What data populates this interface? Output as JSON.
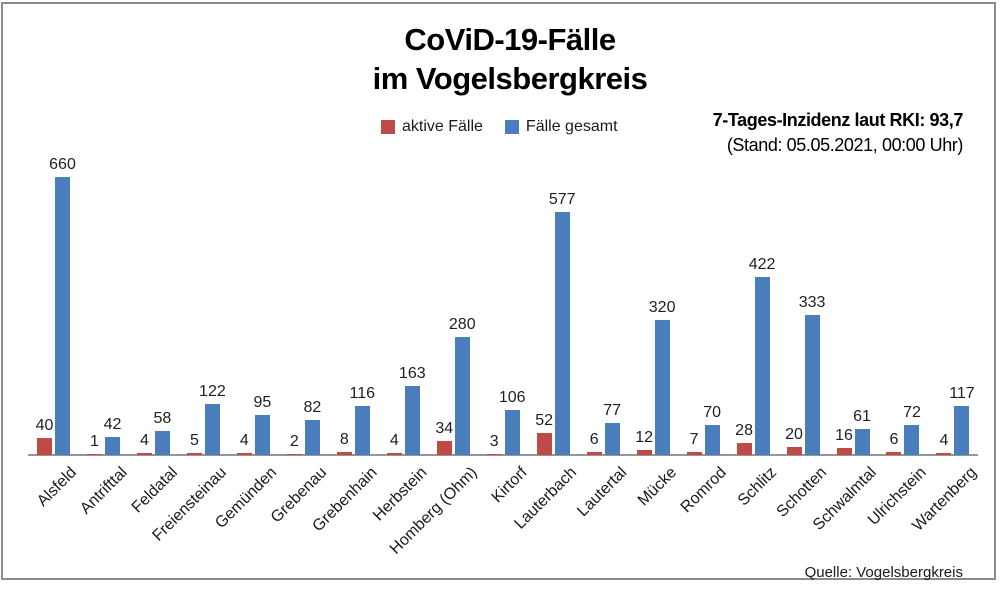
{
  "title": {
    "line1": "CoViD-19-Fälle",
    "line2": "im Vogelsbergkreis"
  },
  "legend": {
    "items": [
      {
        "label": "aktive Fälle",
        "color": "#be4b48"
      },
      {
        "label": "Fälle gesamt",
        "color": "#4a7ebb"
      }
    ]
  },
  "incidence": {
    "line1": "7-Tages-Inzidenz laut RKI: 93,7",
    "line2": "(Stand: 05.05.2021, 00:00 Uhr)"
  },
  "source": "Quelle: Vogelsbergkreis",
  "colors": {
    "active": "#be4b48",
    "total": "#4a7ebb",
    "axis_line": "#969696",
    "frame_border": "#8c8c8c"
  },
  "chart_data": {
    "type": "bar",
    "title": "CoViD-19-Fälle im Vogelsbergkreis",
    "categories": [
      "Alsfeld",
      "Antrifttal",
      "Feldatal",
      "Freiensteinau",
      "Gemünden",
      "Grebenau",
      "Grebenhain",
      "Herbstein",
      "Homberg (Ohm)",
      "Kirtorf",
      "Lauterbach",
      "Lautertal",
      "Mücke",
      "Romrod",
      "Schlitz",
      "Schotten",
      "Schwalmtal",
      "Ulrichstein",
      "Wartenberg"
    ],
    "series": [
      {
        "name": "aktive Fälle",
        "color": "#be4b48",
        "values": [
          40,
          1,
          4,
          5,
          4,
          2,
          8,
          4,
          34,
          3,
          52,
          6,
          12,
          7,
          28,
          20,
          16,
          6,
          4
        ]
      },
      {
        "name": "Fälle gesamt",
        "color": "#4a7ebb",
        "values": [
          660,
          42,
          58,
          122,
          95,
          82,
          116,
          163,
          280,
          106,
          577,
          77,
          320,
          70,
          422,
          333,
          61,
          72,
          117
        ]
      }
    ],
    "xlabel": "",
    "ylabel": "",
    "ylim": [
      0,
      700
    ],
    "grid": false,
    "data_labels": true,
    "legend_position": "top",
    "x_tick_rotation": 45
  }
}
